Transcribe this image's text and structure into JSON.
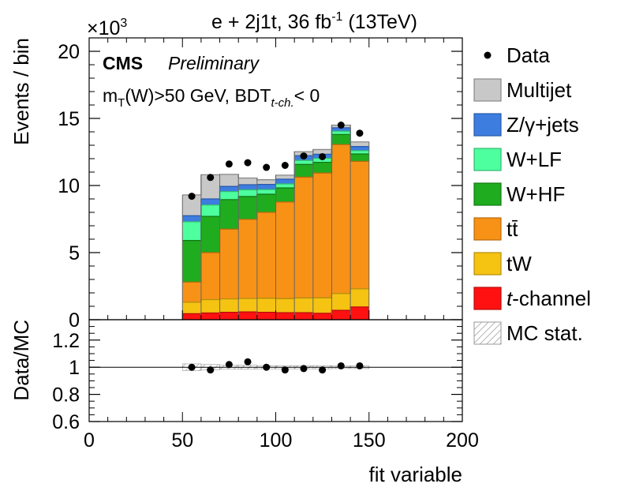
{
  "header": {
    "title_prefix": "e + 2j1t, 36 fb",
    "title_sup": "-1",
    "title_suffix": " (13TeV)",
    "multiplier_base": "×10",
    "multiplier_exp": "3"
  },
  "labels": {
    "cms": "CMS",
    "preliminary": "Preliminary",
    "selection_m": "m",
    "selection_m_sub": "T",
    "selection_mid": "(W)>50 GeV, BDT",
    "selection_bdt_sub": "t-ch.",
    "selection_end": "< 0",
    "ylabel_top": "Events / bin",
    "ylabel_bottom": "Data/MC",
    "xlabel": "fit variable"
  },
  "legend": [
    {
      "key": "data",
      "label": "Data",
      "kind": "marker"
    },
    {
      "key": "multijet",
      "label": "Multijet",
      "kind": "box",
      "color": "#c8c8c8",
      "edge": "#888888"
    },
    {
      "key": "zjets",
      "label": "Z/γ+jets",
      "kind": "box",
      "color": "#3d7de0",
      "edge": "#2a5aaa"
    },
    {
      "key": "wlf",
      "label": "W+LF",
      "kind": "box",
      "color": "#4dff9f",
      "edge": "#33b870"
    },
    {
      "key": "whf",
      "label": "W+HF",
      "kind": "box",
      "color": "#1fac1f",
      "edge": "#147a14"
    },
    {
      "key": "ttbar",
      "label": "tt̄",
      "kind": "box",
      "color": "#f79216",
      "edge": "#b86a0d"
    },
    {
      "key": "tw",
      "label": "tW",
      "kind": "box",
      "color": "#f5c312",
      "edge": "#b38e0c"
    },
    {
      "key": "tchannel",
      "label": "t-channel",
      "kind": "box",
      "color": "#ff1111",
      "edge": "#b80c0c"
    },
    {
      "key": "mcstat",
      "label": "MC stat.",
      "kind": "hatch"
    }
  ],
  "chart_data": [
    {
      "type": "bar",
      "stacked": true,
      "xlabel": "fit variable",
      "ylabel": "Events / bin",
      "y_unit_multiplier": 1000,
      "xlim": [
        0,
        200
      ],
      "ylim": [
        0,
        21
      ],
      "xticks": [
        0,
        50,
        100,
        150,
        200
      ],
      "yticks": [
        0,
        5,
        10,
        15,
        20
      ],
      "bin_edges": [
        50,
        60,
        70,
        80,
        90,
        100,
        110,
        120,
        130,
        140,
        150
      ],
      "series": [
        {
          "name": "t-channel",
          "key": "tchannel",
          "values": [
            0.45,
            0.5,
            0.55,
            0.58,
            0.55,
            0.52,
            0.52,
            0.48,
            0.7,
            0.95
          ]
        },
        {
          "name": "tW",
          "key": "tw",
          "values": [
            0.85,
            1.0,
            1.0,
            1.0,
            1.05,
            1.05,
            1.1,
            1.15,
            1.25,
            1.35
          ]
        },
        {
          "name": "tt̄",
          "key": "ttbar",
          "values": [
            1.5,
            3.5,
            5.2,
            5.9,
            6.4,
            7.2,
            9.0,
            9.3,
            11.1,
            9.5
          ]
        },
        {
          "name": "W+HF",
          "key": "whf",
          "values": [
            3.1,
            2.7,
            2.2,
            1.7,
            1.35,
            1.05,
            0.95,
            0.8,
            0.75,
            0.55
          ]
        },
        {
          "name": "W+LF",
          "key": "wlf",
          "values": [
            1.4,
            0.85,
            0.6,
            0.5,
            0.35,
            0.3,
            0.3,
            0.3,
            0.25,
            0.25
          ]
        },
        {
          "name": "Z/γ+jets",
          "key": "zjets",
          "values": [
            0.45,
            0.45,
            0.38,
            0.38,
            0.38,
            0.35,
            0.35,
            0.3,
            0.25,
            0.3
          ]
        },
        {
          "name": "Multijet",
          "key": "multijet",
          "values": [
            1.55,
            1.8,
            0.9,
            0.5,
            0.35,
            0.3,
            0.3,
            0.35,
            0.2,
            0.35
          ]
        }
      ],
      "data_points": {
        "name": "Data",
        "x": [
          55,
          65,
          75,
          85,
          95,
          105,
          115,
          125,
          135,
          145
        ],
        "y": [
          9.2,
          10.6,
          11.6,
          11.7,
          11.35,
          11.5,
          12.2,
          12.15,
          14.5,
          13.9
        ]
      }
    },
    {
      "type": "scatter",
      "xlabel": "fit variable",
      "ylabel": "Data/MC",
      "xlim": [
        0,
        200
      ],
      "ylim": [
        0.6,
        1.35
      ],
      "yticks": [
        0.6,
        0.8,
        1.0,
        1.2
      ],
      "ytick_labels": [
        "0.6",
        "0.8",
        "1",
        "1.2"
      ],
      "reference_line": 1.0,
      "x": [
        55,
        65,
        75,
        85,
        95,
        105,
        115,
        125,
        135,
        145
      ],
      "y": [
        1.0,
        0.98,
        1.02,
        1.04,
        1.0,
        0.98,
        0.99,
        0.98,
        1.01,
        1.01
      ],
      "mc_stat_band": {
        "lo": [
          0.975,
          0.98,
          0.985,
          0.985,
          0.988,
          0.988,
          0.988,
          0.988,
          0.99,
          0.99
        ],
        "hi": [
          1.025,
          1.02,
          1.015,
          1.015,
          1.012,
          1.012,
          1.012,
          1.012,
          1.01,
          1.01
        ]
      }
    }
  ]
}
